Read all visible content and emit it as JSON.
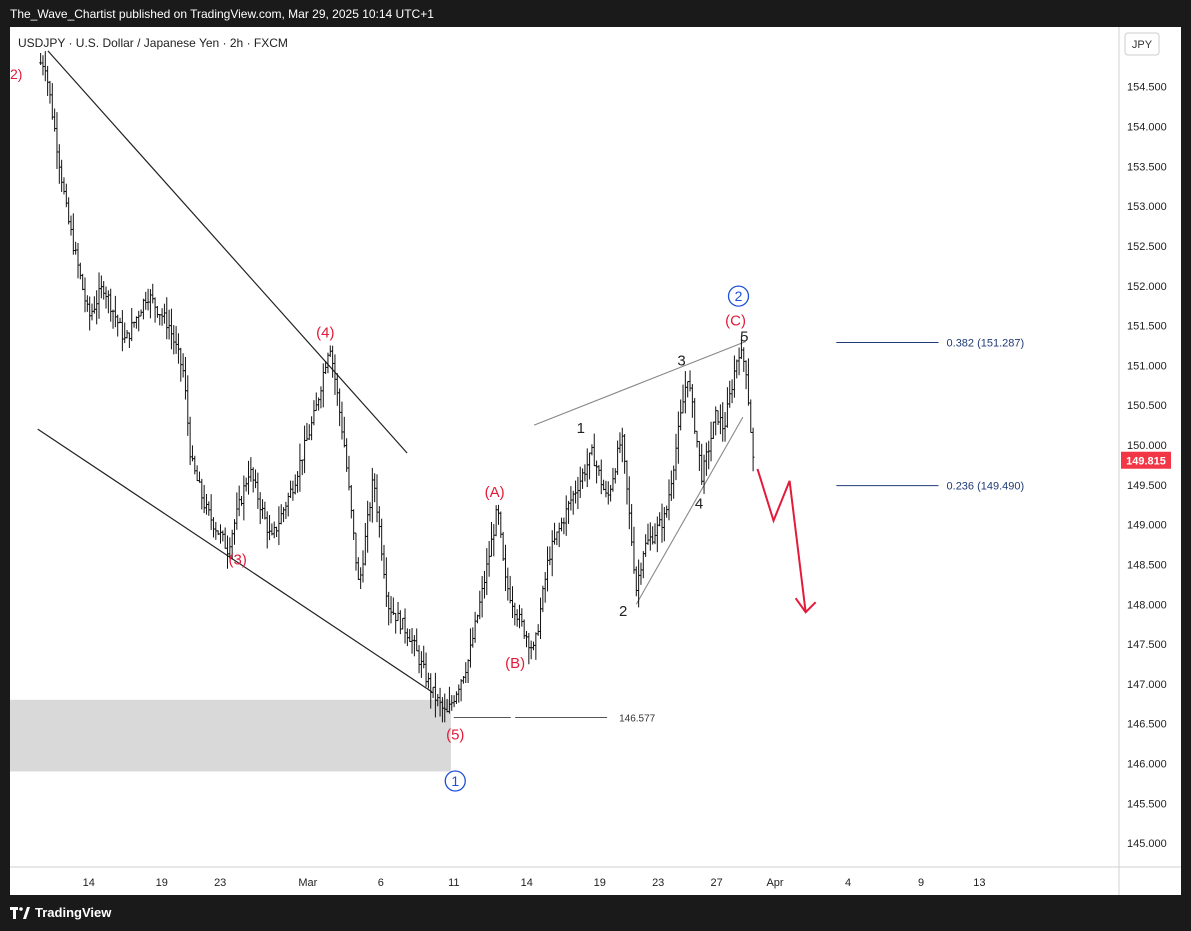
{
  "header": {
    "publish_line": "The_Wave_Chartist published on TradingView.com, Mar 29, 2025 10:14 UTC+1"
  },
  "footer": {
    "brand": "TradingView"
  },
  "chart_data": {
    "type": "candlestick",
    "title": "USDJPY · U.S. Dollar / Japanese Yen · 2h · FXCM",
    "currency_label": "JPY",
    "ylim": [
      144.7,
      155.25
    ],
    "y_ticks": [
      {
        "v": 154.5,
        "label": "154.500"
      },
      {
        "v": 154.0,
        "label": "154.000"
      },
      {
        "v": 153.5,
        "label": "153.500"
      },
      {
        "v": 153.0,
        "label": "153.000"
      },
      {
        "v": 152.5,
        "label": "152.500"
      },
      {
        "v": 152.0,
        "label": "152.000"
      },
      {
        "v": 151.5,
        "label": "151.500"
      },
      {
        "v": 151.0,
        "label": "151.000"
      },
      {
        "v": 150.5,
        "label": "150.500"
      },
      {
        "v": 150.0,
        "label": "150.000"
      },
      {
        "v": 149.5,
        "label": "149.500"
      },
      {
        "v": 149.0,
        "label": "149.000"
      },
      {
        "v": 148.5,
        "label": "148.500"
      },
      {
        "v": 148.0,
        "label": "148.000"
      },
      {
        "v": 147.5,
        "label": "147.500"
      },
      {
        "v": 147.0,
        "label": "147.000"
      },
      {
        "v": 146.5,
        "label": "146.500"
      },
      {
        "v": 146.0,
        "label": "146.000"
      },
      {
        "v": 145.5,
        "label": "145.500"
      },
      {
        "v": 145.0,
        "label": "145.000"
      }
    ],
    "x_ticks": [
      {
        "t": 3,
        "label": "14"
      },
      {
        "t": 8,
        "label": "19"
      },
      {
        "t": 12,
        "label": "23"
      },
      {
        "t": 18,
        "label": "Mar"
      },
      {
        "t": 23,
        "label": "6"
      },
      {
        "t": 28,
        "label": "11"
      },
      {
        "t": 33,
        "label": "14"
      },
      {
        "t": 38,
        "label": "19"
      },
      {
        "t": 42,
        "label": "23"
      },
      {
        "t": 46,
        "label": "27"
      },
      {
        "t": 50,
        "label": "Apr"
      },
      {
        "t": 55,
        "label": "4"
      },
      {
        "t": 60,
        "label": "9"
      },
      {
        "t": 64,
        "label": "13"
      }
    ],
    "last_price": {
      "value": 149.815,
      "label": "149.815",
      "color": "#f23645"
    },
    "price_path": [
      [
        0,
        154.8
      ],
      [
        1.5,
        152.9
      ],
      [
        3,
        151.6
      ],
      [
        4,
        152.0
      ],
      [
        5.5,
        151.3
      ],
      [
        7,
        151.9
      ],
      [
        8.5,
        151.5
      ],
      [
        9.5,
        150.9
      ],
      [
        10,
        149.8
      ],
      [
        11,
        149.2
      ],
      [
        12.5,
        148.7
      ],
      [
        14,
        149.7
      ],
      [
        15.5,
        148.8
      ],
      [
        17,
        149.5
      ],
      [
        18.5,
        150.4
      ],
      [
        19.5,
        151.3
      ],
      [
        20.5,
        150.0
      ],
      [
        21.5,
        148.2
      ],
      [
        22.5,
        149.6
      ],
      [
        23.5,
        148.0
      ],
      [
        25,
        147.6
      ],
      [
        26.5,
        146.9
      ],
      [
        27.5,
        146.6
      ],
      [
        29,
        147.3
      ],
      [
        30,
        148.2
      ],
      [
        31,
        149.2
      ],
      [
        31.5,
        148.3
      ],
      [
        32.5,
        147.8
      ],
      [
        33.5,
        147.4
      ],
      [
        34.5,
        148.6
      ],
      [
        36,
        149.3
      ],
      [
        37.5,
        149.9
      ],
      [
        38.5,
        149.3
      ],
      [
        39.5,
        150.1
      ],
      [
        40.5,
        148.2
      ],
      [
        41,
        148.7
      ],
      [
        42.5,
        149.1
      ],
      [
        44,
        150.9
      ],
      [
        45,
        149.6
      ],
      [
        46,
        150.4
      ],
      [
        46.5,
        150.2
      ],
      [
        47.5,
        151.2
      ],
      [
        48,
        151.0
      ],
      [
        48.5,
        149.815
      ]
    ],
    "channel_lines": [
      {
        "from": [
          0.2,
          154.95
        ],
        "to": [
          24.8,
          149.9
        ]
      },
      {
        "from": [
          -0.5,
          150.2
        ],
        "to": [
          26.5,
          146.9
        ]
      }
    ],
    "diagonal_lines": [
      {
        "from": [
          33.5,
          150.25
        ],
        "to": [
          48,
          151.3
        ],
        "color": "#888888"
      },
      {
        "from": [
          40.5,
          148.0
        ],
        "to": [
          47.8,
          150.35
        ],
        "color": "#888888"
      }
    ],
    "support_zone": {
      "x0": 0,
      "x1": 27.8,
      "y_top": 146.8,
      "y_bottom": 145.9
    },
    "level_146577": {
      "value": 146.577,
      "label": "146.577",
      "segments": [
        [
          28,
          31.9
        ],
        [
          32.2,
          38.5
        ]
      ]
    },
    "fib_levels": [
      {
        "value": 151.287,
        "label": "0.382 (151.287)",
        "x0": 54.2,
        "x1": 61.2
      },
      {
        "value": 149.49,
        "label": "0.236 (149.490)",
        "x0": 54.2,
        "x1": 61.2
      }
    ],
    "wave_labels": [
      {
        "text": "(3)",
        "x": 13.2,
        "y": 148.5,
        "color": "#e31a3a"
      },
      {
        "text": "(4)",
        "x": 19.2,
        "y": 151.35,
        "color": "#e31a3a"
      },
      {
        "text": "(5)",
        "x": 28.1,
        "y": 146.3,
        "color": "#e31a3a"
      },
      {
        "text": "(A)",
        "x": 30.8,
        "y": 149.35,
        "color": "#e31a3a"
      },
      {
        "text": "(B)",
        "x": 32.2,
        "y": 147.2,
        "color": "#e31a3a"
      },
      {
        "text": "(C)",
        "x": 47.3,
        "y": 151.5,
        "color": "#e31a3a"
      },
      {
        "text": "1",
        "x": 36.7,
        "y": 150.15,
        "color": "#222222"
      },
      {
        "text": "2",
        "x": 39.6,
        "y": 147.85,
        "color": "#222222"
      },
      {
        "text": "3",
        "x": 43.6,
        "y": 151.0,
        "color": "#222222"
      },
      {
        "text": "4",
        "x": 44.8,
        "y": 149.2,
        "color": "#222222"
      },
      {
        "text": "5",
        "x": 47.9,
        "y": 151.3,
        "color": "#222222"
      }
    ],
    "circled_labels": [
      {
        "text": "1",
        "x": 28.1,
        "y": 145.78,
        "color": "#1e4fd8"
      },
      {
        "text": "2",
        "x": 47.5,
        "y": 151.87,
        "color": "#1e4fd8"
      }
    ],
    "partial_label": {
      "text": "2)",
      "x": 0.1,
      "y": 154.6,
      "color": "#e31a3a"
    },
    "projection_arrow": {
      "color": "#e31a3a",
      "points": [
        [
          48.8,
          149.7
        ],
        [
          49.9,
          149.05
        ],
        [
          51,
          149.55
        ],
        [
          52.1,
          147.9
        ]
      ]
    }
  }
}
